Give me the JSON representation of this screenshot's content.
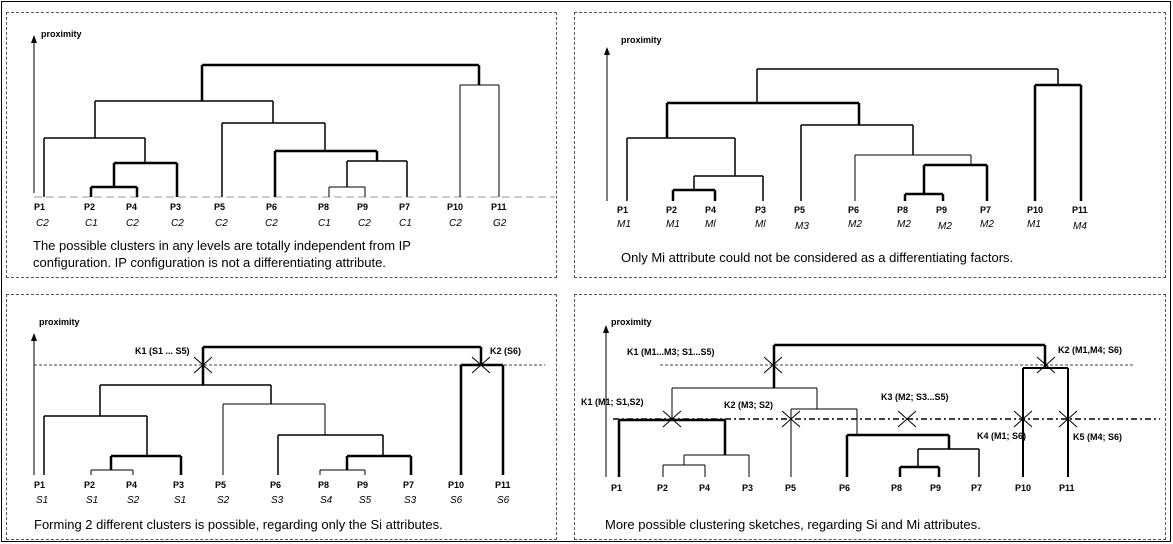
{
  "axis_label": "proximity",
  "leaves": [
    "P1",
    "P2",
    "P4",
    "P3",
    "P5",
    "P6",
    "P8",
    "P9",
    "P7",
    "P10",
    "P11"
  ],
  "panel1": {
    "attrs": [
      "C2",
      "C1",
      "C2",
      "C2",
      "C2",
      "C2",
      "C1",
      "C2",
      "C1",
      "C2",
      "G2"
    ],
    "caption_line1": "The possible clusters in any levels are  totally independent from IP",
    "caption_line2": "configuration. IP configuration is not a differentiating attribute."
  },
  "panel2": {
    "attrs": [
      "M1",
      "M1",
      "Ml",
      "Ml",
      "M3",
      "M2",
      "M2",
      "M2",
      "M2",
      "M1",
      "M4"
    ],
    "caption": "Only Mi attribute could not be considered as a differentiating factors."
  },
  "panel3": {
    "attrs": [
      "S1",
      "S1",
      "S2",
      "S1",
      "S2",
      "S3",
      "S4",
      "S5",
      "S3",
      "S6",
      "S6"
    ],
    "k1": "K1 (S1 ... S5)",
    "k2": "K2 (S6)",
    "caption": "Forming 2 different clusters is possible, regarding only the Si attributes."
  },
  "panel4": {
    "k1_top": "K1 (M1...M3; S1...S5)",
    "k2_top": "K2 (M1,M4; S6)",
    "k1_low": "K1 (M1; S1,S2)",
    "k2_low": "K2 (M3; S2)",
    "k3": "K3 (M2; S3...S5)",
    "k4": "K4 (M1; S6)",
    "k5": "K5 (M4; S6)",
    "caption": "More possible clustering sketches, regarding  Si and Mi attributes."
  }
}
